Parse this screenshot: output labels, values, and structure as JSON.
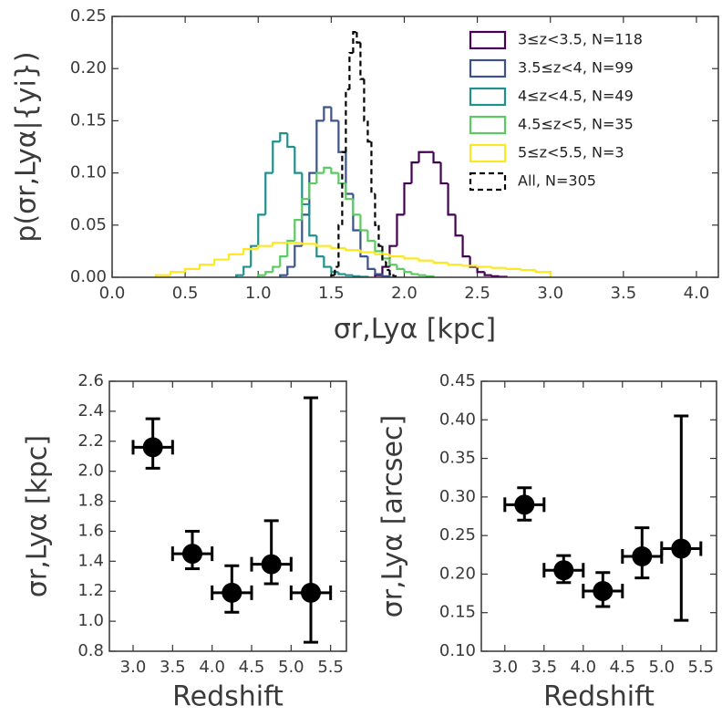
{
  "chart_data": [
    {
      "type": "histogram",
      "xlabel": "σr,Lyα [kpc]",
      "ylabel": "p(σr,Lyα|{yi})",
      "xlim": [
        0,
        4.15
      ],
      "ylim": [
        0,
        0.25
      ],
      "xticks": [
        {
          "value": 0,
          "label": "0.0"
        },
        0.5,
        {
          "value": 1,
          "label": "1.0"
        },
        1.5,
        {
          "value": 2,
          "label": "2.0"
        },
        2.5,
        {
          "value": 3,
          "label": "3.0"
        },
        3.5,
        {
          "value": 4,
          "label": "4.0"
        }
      ],
      "yticks": [
        {
          "value": 0,
          "label": "0.00"
        },
        {
          "value": 0.05,
          "label": "0.05"
        },
        {
          "value": 0.1,
          "label": "0.10"
        },
        {
          "value": 0.15,
          "label": "0.15"
        },
        {
          "value": 0.2,
          "label": "0.20"
        },
        {
          "value": 0.25,
          "label": "0.25"
        }
      ],
      "legend": "upper right",
      "series": [
        {
          "name": "3≤z<3.5, N=118",
          "color": "#440154",
          "linestyle": "solid",
          "bins": [
            1.8,
            1.85,
            1.9,
            1.95,
            2.0,
            2.05,
            2.1,
            2.15,
            2.2,
            2.25,
            2.3,
            2.35,
            2.4,
            2.45,
            2.5,
            2.55,
            2.6,
            2.65,
            2.7
          ],
          "values": [
            0.002,
            0.01,
            0.03,
            0.06,
            0.09,
            0.11,
            0.12,
            0.12,
            0.11,
            0.09,
            0.06,
            0.04,
            0.02,
            0.01,
            0.005,
            0.002,
            0.001,
            0.0005
          ]
        },
        {
          "name": "3.5≤z<4, N=99",
          "color": "#3b528b",
          "linestyle": "solid",
          "bins": [
            1.15,
            1.2,
            1.25,
            1.3,
            1.35,
            1.4,
            1.45,
            1.5,
            1.55,
            1.6,
            1.65,
            1.7,
            1.75,
            1.8,
            1.85,
            1.9
          ],
          "values": [
            0.002,
            0.01,
            0.03,
            0.06,
            0.1,
            0.15,
            0.163,
            0.15,
            0.12,
            0.08,
            0.045,
            0.02,
            0.008,
            0.003,
            0.001
          ]
        },
        {
          "name": "4≤z<4.5, N=49",
          "color": "#21908d",
          "linestyle": "solid",
          "bins": [
            0.85,
            0.9,
            0.95,
            1.0,
            1.05,
            1.1,
            1.15,
            1.2,
            1.25,
            1.3,
            1.35,
            1.4,
            1.45,
            1.5,
            1.55,
            1.6,
            1.65,
            1.7,
            1.75
          ],
          "values": [
            0.002,
            0.01,
            0.03,
            0.06,
            0.1,
            0.13,
            0.138,
            0.125,
            0.1,
            0.07,
            0.04,
            0.02,
            0.01,
            0.005,
            0.003,
            0.002,
            0.001,
            0.0005
          ]
        },
        {
          "name": "4.5≤z<5, N=35",
          "color": "#5dc963",
          "linestyle": "solid",
          "bins": [
            1.0,
            1.05,
            1.1,
            1.15,
            1.2,
            1.25,
            1.3,
            1.35,
            1.4,
            1.45,
            1.5,
            1.55,
            1.6,
            1.65,
            1.7,
            1.75,
            1.8,
            1.85,
            1.9,
            1.95,
            2.0,
            2.05,
            2.1,
            2.15,
            2.2
          ],
          "values": [
            0.002,
            0.005,
            0.01,
            0.02,
            0.035,
            0.055,
            0.075,
            0.09,
            0.1,
            0.105,
            0.1,
            0.09,
            0.075,
            0.06,
            0.045,
            0.035,
            0.025,
            0.018,
            0.012,
            0.008,
            0.005,
            0.003,
            0.002,
            0.001
          ]
        },
        {
          "name": "5≤z<5.5, N=3",
          "color": "#fde725",
          "linestyle": "solid",
          "bins": [
            0.3,
            0.4,
            0.5,
            0.6,
            0.7,
            0.8,
            0.9,
            1.0,
            1.1,
            1.2,
            1.3,
            1.4,
            1.5,
            1.6,
            1.7,
            1.8,
            1.9,
            2.0,
            2.1,
            2.2,
            2.3,
            2.4,
            2.5,
            2.6,
            2.7,
            2.8,
            2.9,
            3.0
          ],
          "values": [
            0.002,
            0.005,
            0.008,
            0.012,
            0.017,
            0.022,
            0.027,
            0.03,
            0.033,
            0.033,
            0.032,
            0.03,
            0.028,
            0.026,
            0.024,
            0.022,
            0.02,
            0.018,
            0.016,
            0.014,
            0.012,
            0.011,
            0.01,
            0.009,
            0.008,
            0.007,
            0.005
          ]
        },
        {
          "name": "All, N=305",
          "color": "#000000",
          "linestyle": "dashed",
          "bins": [
            1.5,
            1.525,
            1.55,
            1.575,
            1.6,
            1.625,
            1.65,
            1.675,
            1.7,
            1.725,
            1.75,
            1.775,
            1.8,
            1.825,
            1.85,
            1.875,
            1.9,
            1.925,
            1.95
          ],
          "values": [
            0.002,
            0.01,
            0.05,
            0.12,
            0.18,
            0.215,
            0.235,
            0.225,
            0.19,
            0.15,
            0.13,
            0.08,
            0.05,
            0.03,
            0.015,
            0.007,
            0.003,
            0.001
          ]
        }
      ]
    },
    {
      "type": "scatter",
      "xlabel": "Redshift",
      "ylabel": "σr,Lyα [kpc]",
      "xlim": [
        2.7,
        5.7
      ],
      "ylim": [
        0.8,
        2.6
      ],
      "xticks": [
        {
          "value": 3,
          "label": "3.0"
        },
        3.5,
        {
          "value": 4,
          "label": "4.0"
        },
        4.5,
        {
          "value": 5,
          "label": "5.0"
        },
        5.5
      ],
      "yticks": [
        0.8,
        {
          "value": 1,
          "label": "1.0"
        },
        1.2,
        1.4,
        1.6,
        1.8,
        {
          "value": 2,
          "label": "2.0"
        },
        2.2,
        2.4,
        2.6
      ],
      "color": "#000000",
      "x": [
        3.25,
        3.75,
        4.25,
        4.75,
        5.25
      ],
      "xerr": [
        0.25,
        0.25,
        0.25,
        0.25,
        0.25
      ],
      "values": [
        2.16,
        1.45,
        1.19,
        1.38,
        1.19
      ],
      "yerr_minus": [
        0.14,
        0.1,
        0.13,
        0.13,
        0.33
      ],
      "yerr_plus": [
        0.19,
        0.15,
        0.18,
        0.29,
        1.3
      ]
    },
    {
      "type": "scatter",
      "xlabel": "Redshift",
      "ylabel": "σr,Lyα [arcsec]",
      "xlim": [
        2.7,
        5.7
      ],
      "ylim": [
        0.1,
        0.45
      ],
      "xticks": [
        {
          "value": 3,
          "label": "3.0"
        },
        3.5,
        {
          "value": 4,
          "label": "4.0"
        },
        4.5,
        {
          "value": 5,
          "label": "5.0"
        },
        5.5
      ],
      "yticks": [
        {
          "value": 0.1,
          "label": "0.10"
        },
        0.15,
        {
          "value": 0.2,
          "label": "0.20"
        },
        0.25,
        {
          "value": 0.3,
          "label": "0.30"
        },
        0.35,
        {
          "value": 0.4,
          "label": "0.40"
        },
        0.45
      ],
      "color": "#000000",
      "x": [
        3.25,
        3.75,
        4.25,
        4.75,
        5.25
      ],
      "xerr": [
        0.25,
        0.25,
        0.25,
        0.25,
        0.25
      ],
      "values": [
        0.29,
        0.205,
        0.178,
        0.223,
        0.233
      ],
      "yerr_minus": [
        0.02,
        0.016,
        0.02,
        0.028,
        0.093
      ],
      "yerr_plus": [
        0.022,
        0.019,
        0.024,
        0.037,
        0.172
      ]
    }
  ]
}
